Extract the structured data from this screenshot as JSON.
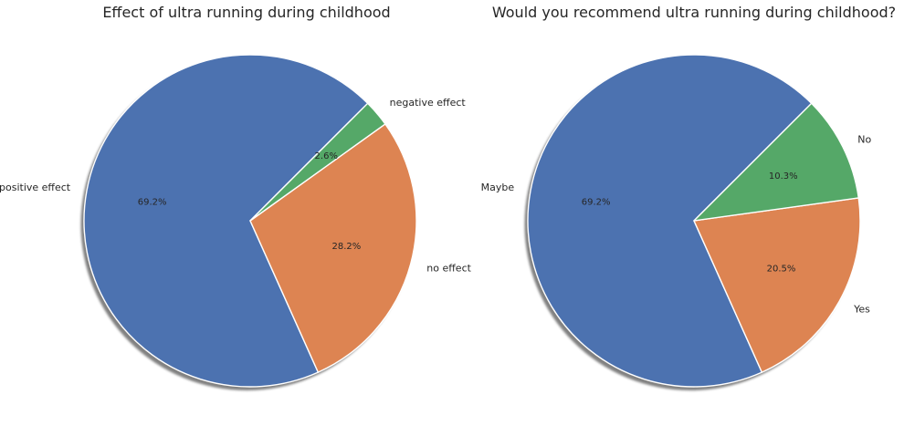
{
  "chart_data": [
    {
      "type": "pie",
      "title": "Effect of ultra running during childhood",
      "categories": [
        "positive effect",
        "no effect",
        "negative effect"
      ],
      "values": [
        69.2,
        28.2,
        2.6
      ],
      "percent_labels": [
        "69.2%",
        "28.2%",
        "2.6%"
      ],
      "colors": [
        "#4c72b0",
        "#dd8452",
        "#55a868"
      ],
      "start_angle_deg": 45,
      "shadow": true,
      "legend": "none"
    },
    {
      "type": "pie",
      "title": "Would you recommend ultra running during childhood?",
      "categories": [
        "Maybe",
        "Yes",
        "No"
      ],
      "values": [
        69.2,
        20.5,
        10.3
      ],
      "percent_labels": [
        "69.2%",
        "20.5%",
        "10.3%"
      ],
      "colors": [
        "#4c72b0",
        "#dd8452",
        "#55a868"
      ],
      "start_angle_deg": 45,
      "shadow": true,
      "legend": "none"
    }
  ]
}
